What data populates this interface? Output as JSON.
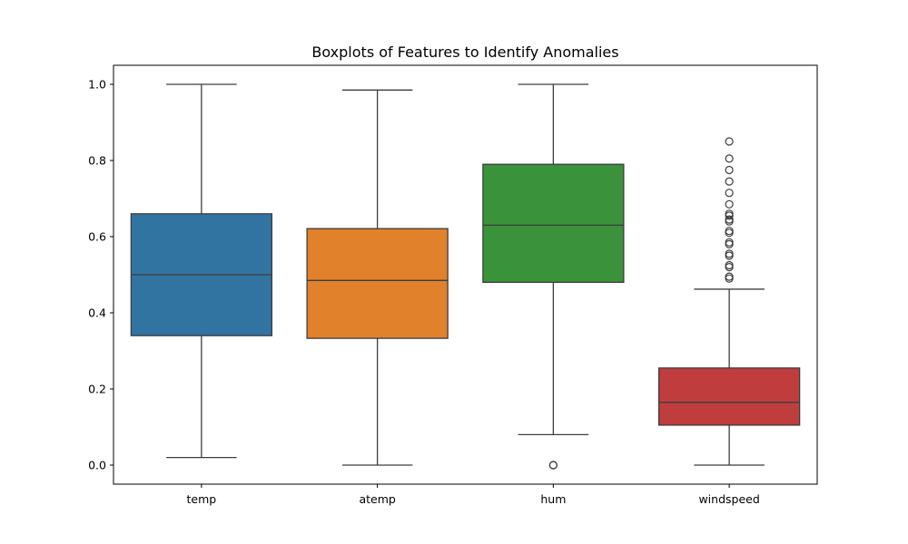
{
  "chart_data": {
    "type": "box",
    "title": "Boxplots of Features to Identify Anomalies",
    "xlabel": "",
    "ylabel": "",
    "ylim": [
      -0.05,
      1.05
    ],
    "y_ticks": [
      "0.0",
      "0.2",
      "0.4",
      "0.6",
      "0.8",
      "1.0"
    ],
    "grid": false,
    "categories": [
      "temp",
      "atemp",
      "hum",
      "windspeed"
    ],
    "boxes": [
      {
        "category": "temp",
        "color": "#3274a1",
        "whisker_low": 0.02,
        "q1": 0.34,
        "median": 0.5,
        "q3": 0.66,
        "whisker_high": 1.0,
        "fliers": []
      },
      {
        "category": "atemp",
        "color": "#e1812c",
        "whisker_low": 0.0,
        "q1": 0.333,
        "median": 0.485,
        "q3": 0.621,
        "whisker_high": 0.985,
        "fliers": []
      },
      {
        "category": "hum",
        "color": "#3a923a",
        "whisker_low": 0.08,
        "q1": 0.48,
        "median": 0.63,
        "q3": 0.79,
        "whisker_high": 1.0,
        "fliers": [
          0.0,
          0.0
        ]
      },
      {
        "category": "windspeed",
        "color": "#c03d3e",
        "whisker_low": 0.0,
        "q1": 0.105,
        "median": 0.165,
        "q3": 0.255,
        "whisker_high": 0.462,
        "fliers": [
          0.49,
          0.495,
          0.52,
          0.525,
          0.55,
          0.555,
          0.58,
          0.585,
          0.61,
          0.615,
          0.64,
          0.645,
          0.655,
          0.66,
          0.685,
          0.715,
          0.745,
          0.775,
          0.805,
          0.85
        ]
      }
    ]
  }
}
